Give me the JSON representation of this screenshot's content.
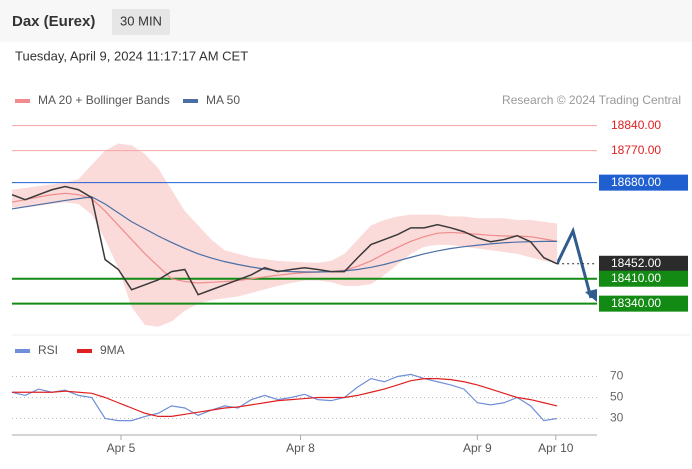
{
  "header": {
    "title": "Dax (Eurex)",
    "timeframe": "30 MIN",
    "date": "Tuesday, April 9, 2024 11:17:17 AM CET"
  },
  "chart_data": [
    {
      "type": "line",
      "source": "Research © 2024 Trading Central",
      "x": [
        0,
        1,
        2,
        3,
        4,
        5,
        6,
        7,
        8,
        9,
        10,
        11,
        12,
        13,
        14,
        15,
        16,
        17,
        18,
        19,
        20,
        21,
        22,
        23,
        24,
        25,
        26,
        27,
        28,
        29,
        30,
        31,
        32,
        33,
        34,
        35,
        36,
        37,
        38,
        39,
        40,
        41
      ],
      "xlim": [
        0,
        44
      ],
      "ylim": [
        18280,
        18870
      ],
      "price": {
        "color": "#3a3a3a",
        "values": [
          18646,
          18632,
          18646,
          18660,
          18669,
          18660,
          18638,
          18464,
          18436,
          18379,
          18393,
          18407,
          18430,
          18436,
          18365,
          18379,
          18393,
          18407,
          18421,
          18441,
          18430,
          18436,
          18441,
          18436,
          18430,
          18430,
          18469,
          18506,
          18520,
          18534,
          18553,
          18553,
          18562,
          18553,
          18542,
          18525,
          18514,
          18520,
          18531,
          18514,
          18469,
          18452
        ]
      },
      "series": [
        {
          "name": "MA 20 + Bollinger Bands",
          "color": "#f08c8c",
          "band_color": "#fbdada",
          "values": [
            18625,
            18632,
            18640,
            18646,
            18650,
            18646,
            18635,
            18600,
            18560,
            18520,
            18480,
            18445,
            18410,
            18402,
            18398,
            18400,
            18402,
            18405,
            18410,
            18415,
            18420,
            18424,
            18427,
            18429,
            18430,
            18434,
            18445,
            18460,
            18480,
            18498,
            18515,
            18528,
            18538,
            18540,
            18538,
            18535,
            18532,
            18530,
            18530,
            18528,
            18522,
            18515
          ],
          "upper": [
            18660,
            18665,
            18670,
            18675,
            18680,
            18690,
            18730,
            18770,
            18790,
            18785,
            18760,
            18720,
            18660,
            18600,
            18560,
            18520,
            18490,
            18480,
            18470,
            18465,
            18460,
            18458,
            18456,
            18455,
            18460,
            18480,
            18520,
            18560,
            18575,
            18585,
            18590,
            18590,
            18590,
            18585,
            18585,
            18580,
            18580,
            18580,
            18575,
            18575,
            18570,
            18565
          ],
          "lower": [
            18610,
            18610,
            18615,
            18620,
            18625,
            18620,
            18590,
            18520,
            18440,
            18330,
            18280,
            18275,
            18290,
            18320,
            18340,
            18350,
            18355,
            18360,
            18370,
            18380,
            18390,
            18398,
            18405,
            18405,
            18400,
            18390,
            18390,
            18395,
            18420,
            18450,
            18480,
            18500,
            18505,
            18505,
            18500,
            18495,
            18490,
            18485,
            18480,
            18470,
            18460,
            18455
          ]
        },
        {
          "name": "MA 50",
          "color": "#4a6fa5",
          "values": [
            18606,
            18612,
            18618,
            18624,
            18630,
            18635,
            18640,
            18620,
            18595,
            18570,
            18550,
            18530,
            18512,
            18495,
            18480,
            18468,
            18458,
            18450,
            18443,
            18437,
            18432,
            18430,
            18429,
            18429,
            18430,
            18432,
            18436,
            18442,
            18450,
            18460,
            18470,
            18480,
            18488,
            18495,
            18500,
            18504,
            18508,
            18511,
            18513,
            18514,
            18515,
            18515
          ]
        }
      ],
      "levels": [
        {
          "value": 18840,
          "label": "18840.00",
          "color": "#f4a5a5",
          "label_color": "#e02020",
          "box": false,
          "line": "solid",
          "width": 1
        },
        {
          "value": 18770,
          "label": "18770.00",
          "color": "#f4a5a5",
          "label_color": "#e02020",
          "box": false,
          "line": "solid",
          "width": 1
        },
        {
          "value": 18680,
          "label": "18680.00",
          "color": "#1f5fd0",
          "label_color": "#ffffff",
          "box": true,
          "line": "solid",
          "width": 1
        },
        {
          "value": 18452,
          "label": "18452.00",
          "color": "#2b2b2b",
          "label_color": "#ffffff",
          "box": true,
          "line": "dotted",
          "width": 1
        },
        {
          "value": 18410,
          "label": "18410.00",
          "color": "#138a13",
          "label_color": "#ffffff",
          "box": true,
          "line": "solid",
          "width": 2
        },
        {
          "value": 18340,
          "label": "18340.00",
          "color": "#138a13",
          "label_color": "#ffffff",
          "box": true,
          "line": "solid",
          "width": 2
        }
      ]
    },
    {
      "type": "line",
      "x": [
        0,
        1,
        2,
        3,
        4,
        5,
        6,
        7,
        8,
        9,
        10,
        11,
        12,
        13,
        14,
        15,
        16,
        17,
        18,
        19,
        20,
        21,
        22,
        23,
        24,
        25,
        26,
        27,
        28,
        29,
        30,
        31,
        32,
        33,
        34,
        35,
        36,
        37,
        38,
        39,
        40,
        41
      ],
      "xlim": [
        0,
        44
      ],
      "ylim": [
        20,
        80
      ],
      "yticks": [
        30,
        50,
        70
      ],
      "grid": true,
      "xticks": [
        {
          "value": 8.2,
          "label": "Apr 5"
        },
        {
          "value": 21.7,
          "label": "Apr 8"
        },
        {
          "value": 35,
          "label": "Apr 9"
        },
        {
          "value": 40.9,
          "label": "Apr 10"
        }
      ],
      "series": [
        {
          "name": "RSI",
          "color": "#6f8fd8",
          "values": [
            55,
            52,
            58,
            55,
            57,
            52,
            50,
            30,
            28,
            28,
            32,
            35,
            42,
            40,
            33,
            38,
            42,
            40,
            48,
            52,
            48,
            50,
            53,
            48,
            47,
            50,
            60,
            68,
            65,
            70,
            72,
            68,
            65,
            62,
            58,
            45,
            43,
            45,
            50,
            42,
            28,
            30
          ]
        },
        {
          "name": "9MA",
          "color": "#e02020",
          "values": [
            55,
            55,
            55,
            55,
            56,
            55,
            54,
            50,
            45,
            40,
            35,
            32,
            32,
            34,
            36,
            38,
            40,
            41,
            43,
            45,
            47,
            48,
            49,
            50,
            50,
            50,
            52,
            55,
            58,
            62,
            66,
            68,
            68,
            67,
            65,
            62,
            58,
            54,
            50,
            48,
            45,
            42
          ]
        }
      ]
    }
  ]
}
